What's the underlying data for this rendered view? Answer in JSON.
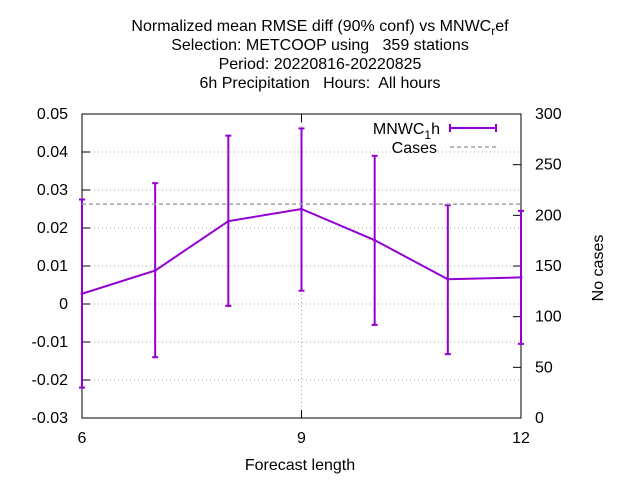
{
  "chart_data": {
    "type": "line",
    "title": [
      "Normalized mean RMSE diff (90% conf) vs MNWC",
      "Selection: METCOOP using   359 stations",
      "Period: 20220816-20220825",
      "6h Precipitation   Hours:  All hours"
    ],
    "title_tail": {
      "sub": "r",
      "after": "ef"
    },
    "xlabel": "Forecast length",
    "ylabel": "",
    "y2label": "No cases",
    "xlim": [
      6,
      12
    ],
    "ylim": [
      -0.03,
      0.05
    ],
    "y2lim": [
      0,
      300
    ],
    "xticks": [
      6,
      9,
      12
    ],
    "yticks": [
      "-0.03",
      "-0.02",
      "-0.01",
      "0",
      "0.01",
      "0.02",
      "0.03",
      "0.04",
      "0.05"
    ],
    "y2ticks": [
      "0",
      "50",
      "100",
      "150",
      "200",
      "250",
      "300"
    ],
    "grid": true,
    "legend_position": "top-right",
    "series": [
      {
        "name": "MNWC",
        "name_sub": "1",
        "name_after": "h",
        "type": "line-errorbar",
        "color": "#9400d3",
        "x": [
          6,
          7,
          8,
          9,
          10,
          11,
          12
        ],
        "y": [
          0.0027,
          0.0088,
          0.0218,
          0.025,
          0.0168,
          0.0065,
          0.007
        ],
        "y_low": [
          -0.022,
          -0.014,
          -0.0005,
          0.0035,
          -0.0055,
          -0.0132,
          -0.0105
        ],
        "y_high": [
          0.0275,
          0.0318,
          0.0443,
          0.0462,
          0.039,
          0.026,
          0.0245
        ]
      },
      {
        "name": "Cases",
        "type": "line-dashed",
        "axis": "y2",
        "color": "#a0a0a0",
        "x": [
          6,
          12
        ],
        "y": [
          211,
          211
        ]
      }
    ]
  }
}
